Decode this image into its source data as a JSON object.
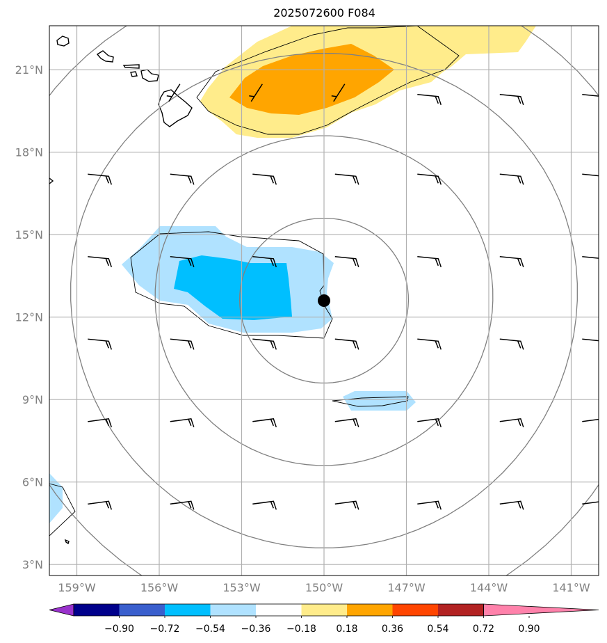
{
  "title": "2025072600 F084",
  "map": {
    "lon_range": [
      -160,
      -140
    ],
    "lat_range": [
      2.6,
      22.6
    ],
    "center_marker": {
      "lon": -150,
      "lat": 12.6
    },
    "latitude_ticks": [
      {
        "value": 3,
        "label": "3°N"
      },
      {
        "value": 6,
        "label": "6°N"
      },
      {
        "value": 9,
        "label": "9°N"
      },
      {
        "value": 12,
        "label": "12°N"
      },
      {
        "value": 15,
        "label": "15°N"
      },
      {
        "value": 18,
        "label": "18°N"
      },
      {
        "value": 21,
        "label": "21°N"
      }
    ],
    "longitude_ticks": [
      {
        "value": -159,
        "label": "159°W"
      },
      {
        "value": -156,
        "label": "156°W"
      },
      {
        "value": -153,
        "label": "153°W"
      },
      {
        "value": -150,
        "label": "150°W"
      },
      {
        "value": -147,
        "label": "147°W"
      },
      {
        "value": -144,
        "label": "144°W"
      },
      {
        "value": -141,
        "label": "141°W"
      }
    ],
    "grid": true,
    "range_rings_deg": [
      3,
      6,
      9,
      12
    ]
  },
  "colorbar": {
    "labels": [
      "−0.90",
      "−0.72",
      "−0.54",
      "−0.36",
      "−0.18",
      "0.18",
      "0.36",
      "0.54",
      "0.72",
      "0.90"
    ],
    "colors": [
      "#9932cc",
      "#00008b",
      "#3a5fcd",
      "#00bfff",
      "#b0e2ff",
      "#ffffff",
      "#ffec8b",
      "#ffa500",
      "#ff4500",
      "#b22222",
      "#ff82ab"
    ]
  }
}
